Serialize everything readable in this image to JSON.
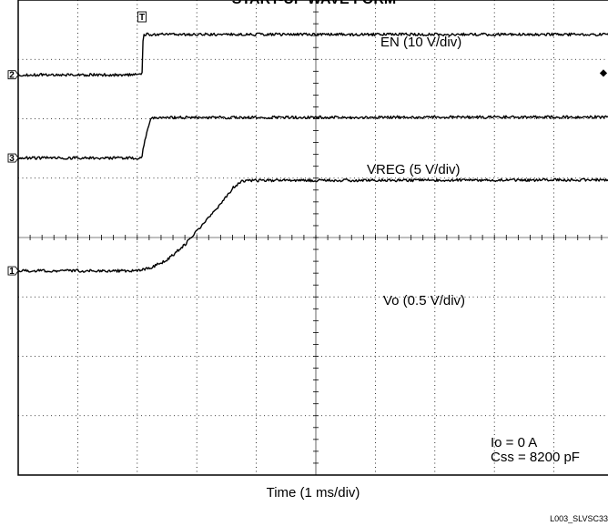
{
  "chart_data": {
    "type": "line",
    "title": "START-UP WAVE FORM",
    "xlabel": "Time (1 ms/div)",
    "ylabel": "",
    "x_divisions": 10,
    "y_divisions": 8,
    "grid": "dotted",
    "trigger_marker": "T",
    "trigger_time_div": 2.08,
    "series": [
      {
        "name": "EN (10 V/div)",
        "channel_marker": "2",
        "ground_div": 6.74,
        "label_placement": "top-right",
        "points": [
          [
            0,
            6.74
          ],
          [
            2.08,
            6.74
          ],
          [
            2.1,
            7.42
          ],
          [
            10,
            7.42
          ]
        ]
      },
      {
        "name": "VREG (5 V/div)",
        "channel_marker": "3",
        "ground_div": 5.34,
        "label_placement": "middle-right",
        "points": [
          [
            0,
            5.34
          ],
          [
            2.08,
            5.34
          ],
          [
            2.1,
            5.5
          ],
          [
            2.18,
            5.85
          ],
          [
            2.24,
            6.02
          ],
          [
            10,
            6.03
          ]
        ]
      },
      {
        "name": "Vo (0.5 V/div)",
        "channel_marker": "1",
        "ground_div": 3.44,
        "label_placement": "lower-right",
        "points": [
          [
            0,
            3.44
          ],
          [
            1.95,
            3.44
          ],
          [
            2.2,
            3.48
          ],
          [
            2.5,
            3.62
          ],
          [
            2.8,
            3.88
          ],
          [
            3.1,
            4.22
          ],
          [
            3.4,
            4.56
          ],
          [
            3.62,
            4.85
          ],
          [
            3.75,
            4.95
          ],
          [
            4.0,
            4.96
          ],
          [
            10,
            4.97
          ]
        ]
      }
    ],
    "annotations": [
      "Io = 0 A",
      "Css = 8200 pF"
    ]
  },
  "footer": {
    "figure_id": "L003_SLVSC33"
  },
  "markers": {
    "right_edge": "◆"
  }
}
